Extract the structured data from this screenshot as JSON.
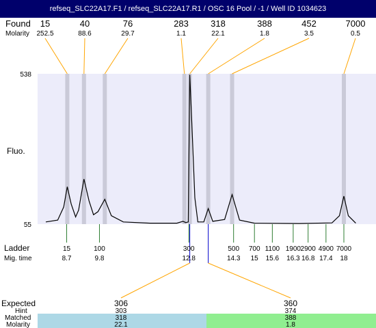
{
  "title": "refseq_SLC22A17.F1 / refseq_SLC22A17.R1 / OSC 16 Pool / -1 / Well ID 1034623",
  "labels": {
    "found": "Found",
    "molarity": "Molarity",
    "fluo": "Fluo.",
    "ladder": "Ladder",
    "mig_time": "Mig. time",
    "expected": "Expected",
    "hint": "Hint",
    "matched": "Matched",
    "molarity_bottom": "Molarity"
  },
  "colors": {
    "title_bg": "#00006b",
    "plot_bg": "#ececfa",
    "band": "#cacad8",
    "found_line": "#ffa500",
    "ladder_line": "#2e7d32",
    "matched_left_bg": "#add8e6",
    "matched_right_bg": "#90ee90",
    "marker_line": "#0000cc"
  },
  "chart_data": {
    "type": "line",
    "ylim": [
      55,
      538
    ],
    "y_ticks": [
      538,
      55
    ],
    "found": [
      {
        "size": "15",
        "molarity": "252.5",
        "time": 8.72
      },
      {
        "size": "40",
        "molarity": "88.6",
        "time": 9.28
      },
      {
        "size": "76",
        "molarity": "29.7",
        "time": 9.98
      },
      {
        "size": "283",
        "molarity": "1.1",
        "time": 12.65
      },
      {
        "size": "318",
        "molarity": "22.1",
        "time": 12.83
      },
      {
        "size": "388",
        "molarity": "1.8",
        "time": 13.45
      },
      {
        "size": "452",
        "molarity": "3.5",
        "time": 14.25
      },
      {
        "size": "7000",
        "molarity": "0.5",
        "time": 18.0
      }
    ],
    "ladder": [
      {
        "size": "15",
        "time": "8.7",
        "t": 8.7
      },
      {
        "size": "100",
        "time": "9.8",
        "t": 9.8
      },
      {
        "size": "300",
        "time": "12.8",
        "t": 12.8
      },
      {
        "size": "500",
        "time": "14.3",
        "t": 14.3
      },
      {
        "size": "700",
        "time": "15",
        "t": 15.0
      },
      {
        "size": "1100",
        "time": "15.6",
        "t": 15.6
      },
      {
        "size": "1900",
        "time": "16.3",
        "t": 16.3
      },
      {
        "size": "2900",
        "time": "16.8",
        "t": 16.8
      },
      {
        "size": "4900",
        "time": "17.4",
        "t": 17.4
      },
      {
        "size": "7000",
        "time": "18",
        "t": 18.0
      }
    ],
    "trace": [
      {
        "t": 8.0,
        "y": 62
      },
      {
        "t": 8.4,
        "y": 68
      },
      {
        "t": 8.6,
        "y": 110
      },
      {
        "t": 8.72,
        "y": 175
      },
      {
        "t": 8.85,
        "y": 120
      },
      {
        "t": 9.0,
        "y": 78
      },
      {
        "t": 9.1,
        "y": 100
      },
      {
        "t": 9.28,
        "y": 200
      },
      {
        "t": 9.45,
        "y": 130
      },
      {
        "t": 9.6,
        "y": 85
      },
      {
        "t": 9.75,
        "y": 95
      },
      {
        "t": 9.98,
        "y": 135
      },
      {
        "t": 10.2,
        "y": 82
      },
      {
        "t": 10.6,
        "y": 62
      },
      {
        "t": 11.5,
        "y": 58
      },
      {
        "t": 12.4,
        "y": 58
      },
      {
        "t": 12.6,
        "y": 64
      },
      {
        "t": 12.7,
        "y": 60
      },
      {
        "t": 12.78,
        "y": 62
      },
      {
        "t": 12.83,
        "y": 535
      },
      {
        "t": 12.9,
        "y": 380
      },
      {
        "t": 13.0,
        "y": 140
      },
      {
        "t": 13.1,
        "y": 62
      },
      {
        "t": 13.3,
        "y": 62
      },
      {
        "t": 13.45,
        "y": 105
      },
      {
        "t": 13.6,
        "y": 64
      },
      {
        "t": 14.0,
        "y": 70
      },
      {
        "t": 14.25,
        "y": 150
      },
      {
        "t": 14.5,
        "y": 68
      },
      {
        "t": 15.0,
        "y": 58
      },
      {
        "t": 16.5,
        "y": 57
      },
      {
        "t": 17.6,
        "y": 59
      },
      {
        "t": 17.85,
        "y": 82
      },
      {
        "t": 18.0,
        "y": 145
      },
      {
        "t": 18.15,
        "y": 82
      },
      {
        "t": 18.4,
        "y": 58
      }
    ],
    "expected": [
      {
        "expected": "306",
        "hint": "303",
        "matched": "318",
        "molarity": "22.1",
        "time": 12.83
      },
      {
        "expected": "360",
        "hint": "374",
        "matched": "388",
        "molarity": "1.8",
        "time": 13.45
      }
    ]
  }
}
